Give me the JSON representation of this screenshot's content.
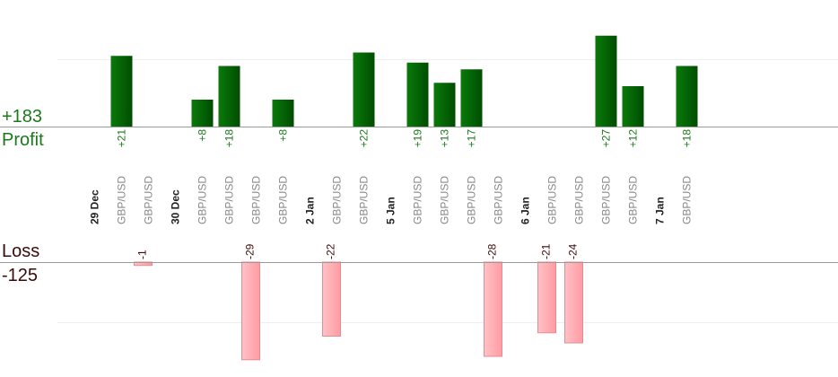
{
  "chart_data": {
    "type": "bar",
    "profit_total_label": "+183",
    "profit_label": "Profit",
    "loss_label": "Loss",
    "loss_total_label": "-125",
    "categories": [
      "29 Dec",
      "GBP/USD",
      "GBP/USD",
      "30 Dec",
      "GBP/USD",
      "GBP/USD",
      "GBP/USD",
      "GBP/USD",
      "2 Jan",
      "GBP/USD",
      "GBP/USD",
      "5 Jan",
      "GBP/USD",
      "GBP/USD",
      "GBP/USD",
      "GBP/USD",
      "6 Jan",
      "GBP/USD",
      "GBP/USD",
      "GBP/USD",
      "GBP/USD",
      "7 Jan",
      "GBP/USD"
    ],
    "date_markers": [
      "29 Dec",
      "30 Dec",
      "2 Jan",
      "5 Jan",
      "6 Jan",
      "7 Jan"
    ],
    "values": [
      null,
      21,
      -1,
      null,
      8,
      18,
      -29,
      8,
      null,
      -22,
      22,
      null,
      19,
      13,
      17,
      -28,
      null,
      -21,
      -24,
      27,
      12,
      null,
      18
    ],
    "value_labels": [
      "",
      "+21",
      "-1",
      "",
      "+8",
      "+18",
      "-29",
      "+8",
      "",
      "-22",
      "+22",
      "",
      "+19",
      "+13",
      "+17",
      "-28",
      "",
      "-21",
      "-24",
      "+27",
      "+12",
      "",
      "+18"
    ],
    "profit_ylim": [
      0,
      20
    ],
    "loss_ylim": [
      -20,
      0
    ],
    "grid": true,
    "colors": {
      "profit_dark": "#004d00",
      "profit_light": "#0a7a0a",
      "profit_text": "#1a7a1a",
      "loss_fill": "#ffb3b8",
      "loss_stroke": "#e88a90",
      "loss_text": "#3a0a0a",
      "date_text": "#222222",
      "pair_text": "#888888",
      "baseline": "#999999",
      "gridline": "#eeeeee"
    }
  }
}
